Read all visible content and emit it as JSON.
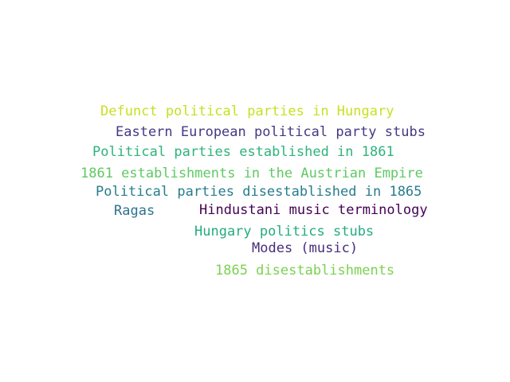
{
  "word_cloud": {
    "words": [
      {
        "text": "Defunct political parties in Hungary",
        "color": "#c8e020"
      },
      {
        "text": "Eastern European political party stubs",
        "color": "#443983"
      },
      {
        "text": "Political parties established in 1861",
        "color": "#2eb37c"
      },
      {
        "text": "1861 establishments in the Austrian Empire",
        "color": "#5ec962"
      },
      {
        "text": "Political parties disestablished in 1865",
        "color": "#287c8e"
      },
      {
        "text": "Ragas",
        "color": "#2c728e"
      },
      {
        "text": "Hindustani music terminology",
        "color": "#440154"
      },
      {
        "text": "Hungary politics stubs",
        "color": "#25ab82"
      },
      {
        "text": "Modes (music)",
        "color": "#472d7b"
      },
      {
        "text": "1865 disestablishments",
        "color": "#7ad151"
      }
    ]
  }
}
